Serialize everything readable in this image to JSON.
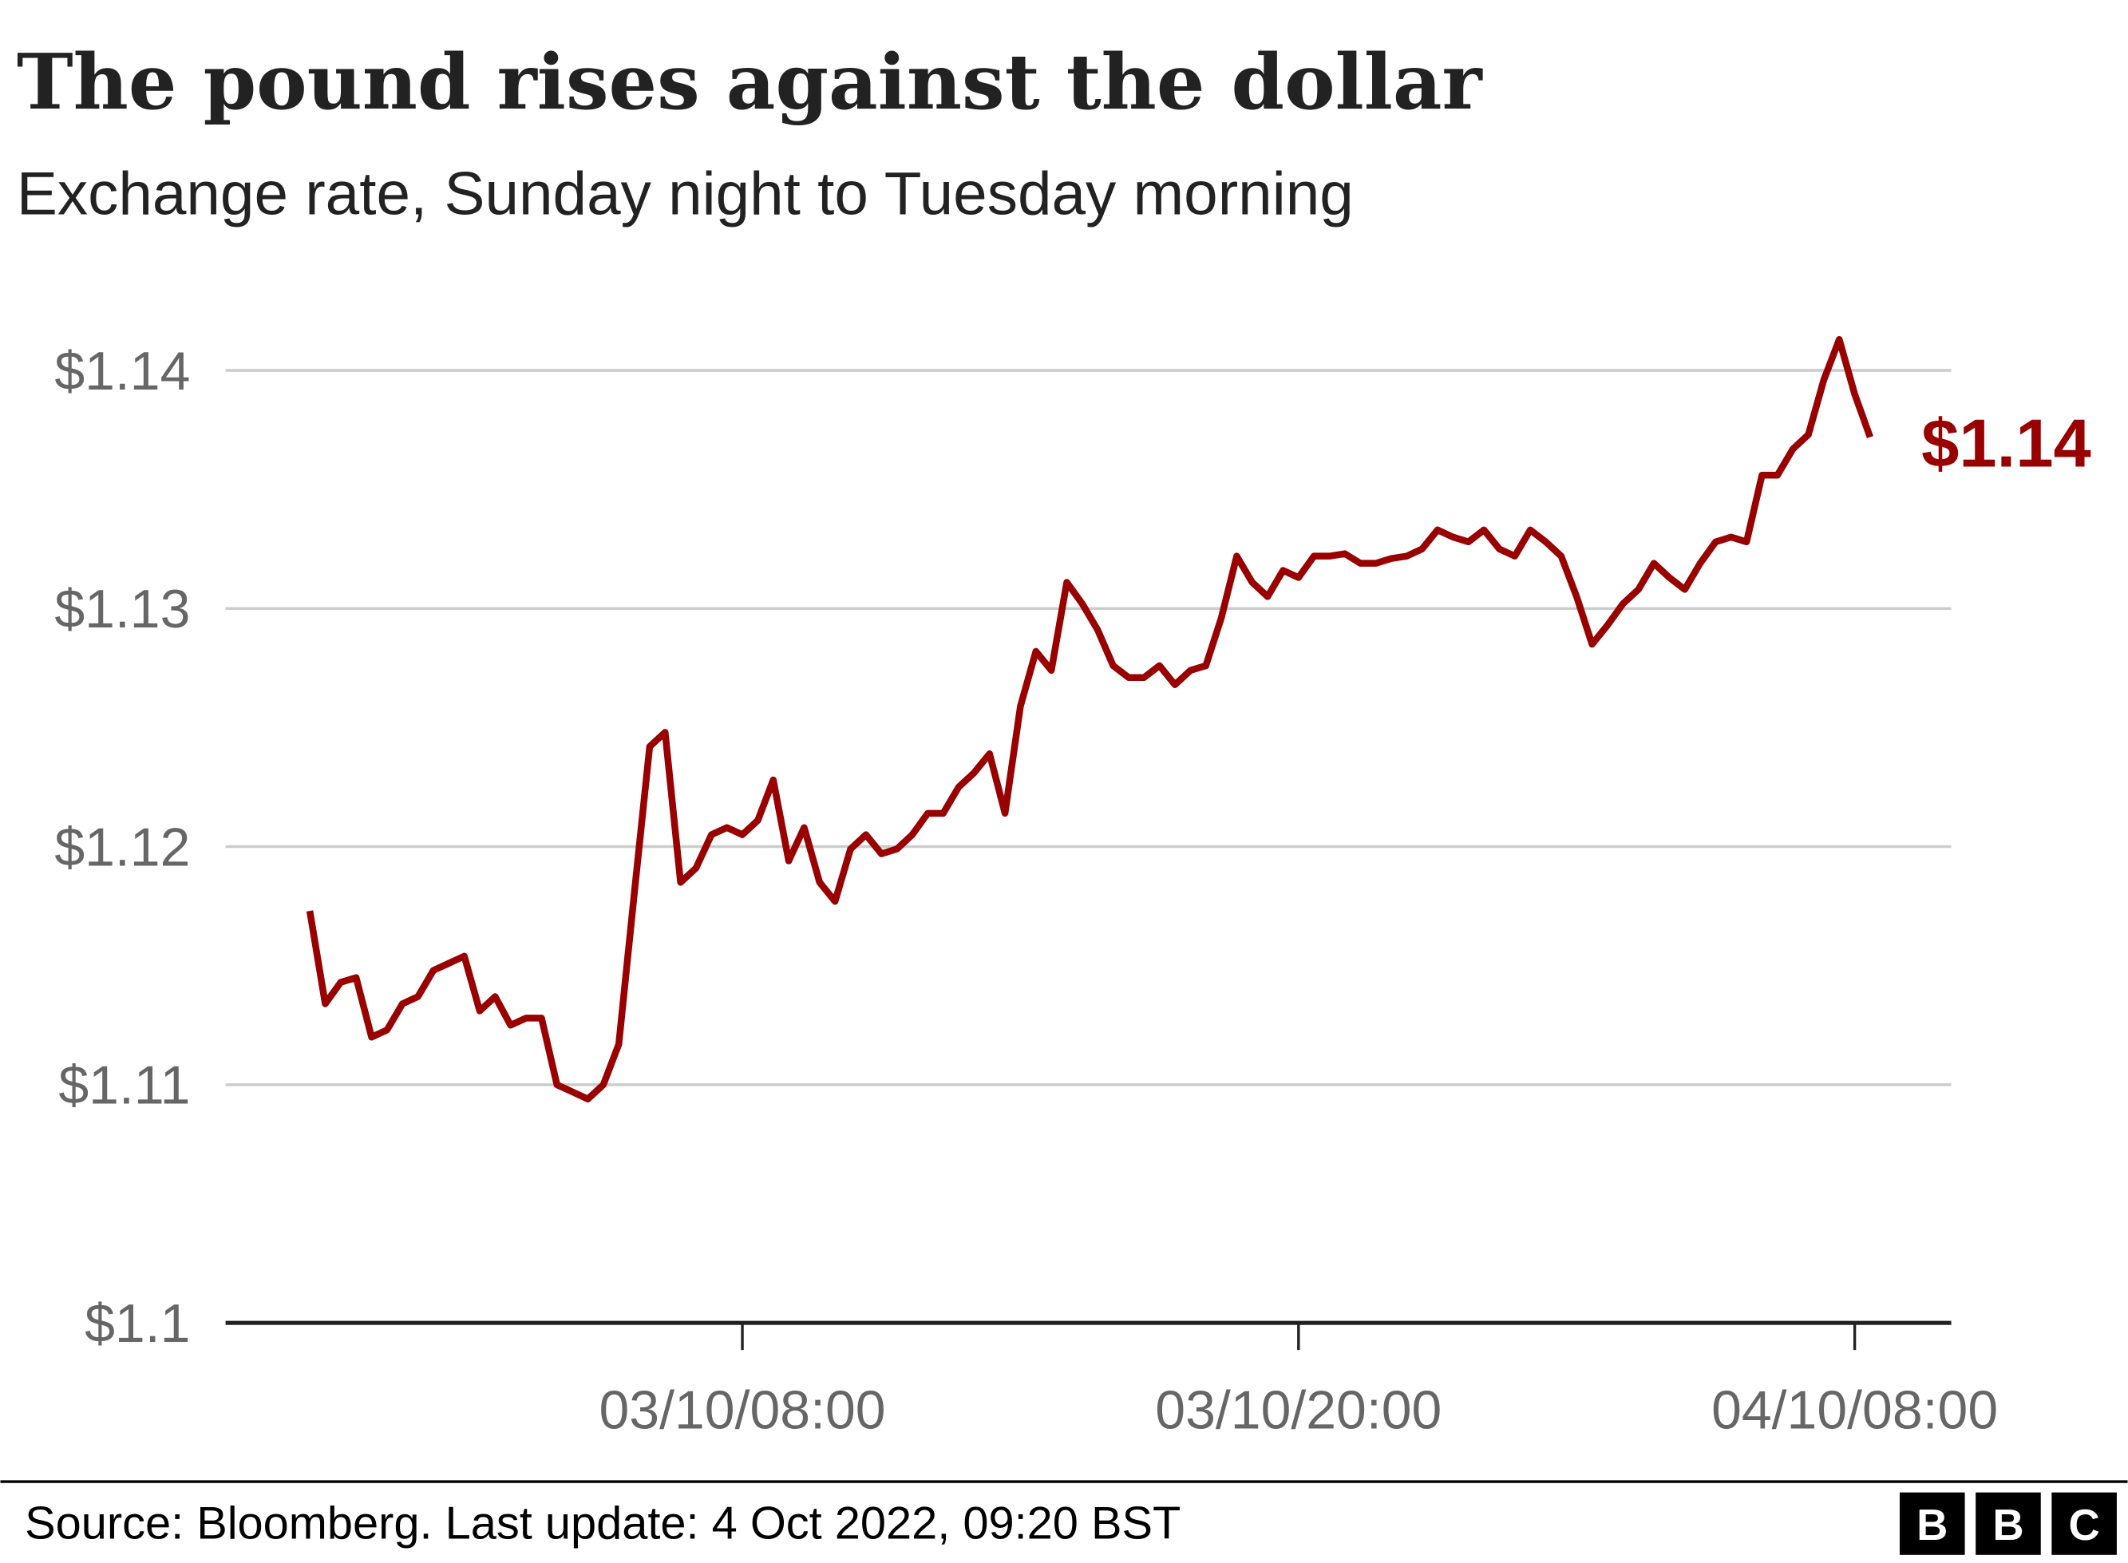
{
  "chart_data": {
    "type": "line",
    "title": "The pound rises against the dollar",
    "subtitle": "Exchange rate, Sunday night to Tuesday morning",
    "source": "Source: Bloomberg. Last update: 4 Oct 2022, 09:20 BST",
    "logo": [
      "B",
      "B",
      "C"
    ],
    "end_label": "$1.14",
    "x": [
      "02/10/22:40",
      "02/10/23:00",
      "02/10/23:20",
      "02/10/23:40",
      "03/10/00:00",
      "03/10/00:20",
      "03/10/00:40",
      "03/10/01:00",
      "03/10/01:20",
      "03/10/01:40",
      "03/10/02:00",
      "03/10/02:20",
      "03/10/02:40",
      "03/10/03:00",
      "03/10/03:20",
      "03/10/03:40",
      "03/10/04:00",
      "03/10/04:20",
      "03/10/04:40",
      "03/10/05:00",
      "03/10/05:20",
      "03/10/05:40",
      "03/10/06:00",
      "03/10/06:20",
      "03/10/06:40",
      "03/10/07:00",
      "03/10/07:20",
      "03/10/07:40",
      "03/10/08:00",
      "03/10/08:20",
      "03/10/08:40",
      "03/10/09:00",
      "03/10/09:20",
      "03/10/09:40",
      "03/10/10:00",
      "03/10/10:20",
      "03/10/10:40",
      "03/10/11:00",
      "03/10/11:20",
      "03/10/11:40",
      "03/10/12:00",
      "03/10/12:20",
      "03/10/12:40",
      "03/10/13:00",
      "03/10/13:20",
      "03/10/13:40",
      "03/10/14:00",
      "03/10/14:20",
      "03/10/14:40",
      "03/10/15:00",
      "03/10/15:20",
      "03/10/15:40",
      "03/10/16:00",
      "03/10/16:20",
      "03/10/16:40",
      "03/10/17:00",
      "03/10/17:20",
      "03/10/17:40",
      "03/10/18:00",
      "03/10/18:20",
      "03/10/18:40",
      "03/10/19:00",
      "03/10/19:20",
      "03/10/19:40",
      "03/10/20:00",
      "03/10/20:20",
      "03/10/20:40",
      "03/10/21:00",
      "03/10/21:20",
      "03/10/21:40",
      "03/10/22:00",
      "03/10/22:20",
      "03/10/22:40",
      "03/10/23:00",
      "03/10/23:20",
      "03/10/23:40",
      "04/10/00:00",
      "04/10/00:20",
      "04/10/00:40",
      "04/10/01:00",
      "04/10/01:20",
      "04/10/01:40",
      "04/10/02:00",
      "04/10/02:20",
      "04/10/02:40",
      "04/10/03:00",
      "04/10/03:20",
      "04/10/03:40",
      "04/10/04:00",
      "04/10/04:20",
      "04/10/04:40",
      "04/10/05:00",
      "04/10/05:20",
      "04/10/05:40",
      "04/10/06:00",
      "04/10/06:20",
      "04/10/06:40",
      "04/10/07:00",
      "04/10/07:20",
      "04/10/07:40",
      "04/10/08:00",
      "04/10/08:20"
    ],
    "series": [
      {
        "color": "#990000",
        "values": [
          1.1173,
          1.1134,
          1.1143,
          1.1145,
          1.112,
          1.1123,
          1.1134,
          1.1137,
          1.1148,
          1.1151,
          1.1154,
          1.1131,
          1.1137,
          1.1125,
          1.1128,
          1.1128,
          1.11,
          1.1097,
          1.1094,
          1.11,
          1.1117,
          1.118,
          1.1242,
          1.1248,
          1.1185,
          1.1191,
          1.1205,
          1.1208,
          1.1205,
          1.1211,
          1.1228,
          1.1194,
          1.1208,
          1.1185,
          1.1177,
          1.1199,
          1.1205,
          1.1197,
          1.1199,
          1.1205,
          1.1214,
          1.1214,
          1.1225,
          1.1231,
          1.1239,
          1.1214,
          1.1259,
          1.1282,
          1.1274,
          1.1311,
          1.1302,
          1.1291,
          1.1276,
          1.1271,
          1.1271,
          1.1276,
          1.1268,
          1.1274,
          1.1276,
          1.1296,
          1.1322,
          1.1311,
          1.1305,
          1.1316,
          1.1313,
          1.1322,
          1.1322,
          1.1323,
          1.1319,
          1.1319,
          1.1321,
          1.1322,
          1.1325,
          1.1333,
          1.133,
          1.1328,
          1.1333,
          1.1325,
          1.1322,
          1.1333,
          1.1328,
          1.1322,
          1.1305,
          1.1285,
          1.1293,
          1.1302,
          1.1308,
          1.1319,
          1.1313,
          1.1308,
          1.1319,
          1.1328,
          1.133,
          1.1328,
          1.1356,
          1.1356,
          1.1367,
          1.1373,
          1.1396,
          1.1413,
          1.139,
          1.1372
        ]
      }
    ],
    "xlim": [
      "02/10/20:51",
      "04/10/10:05"
    ],
    "xticks": [
      "03/10/08:00",
      "03/10/20:00",
      "04/10/08:00"
    ],
    "ylim": [
      1.1,
      1.14
    ],
    "yticks": [
      {
        "value": 1.1,
        "label": "$1.1"
      },
      {
        "value": 1.11,
        "label": "$1.11"
      },
      {
        "value": 1.12,
        "label": "$1.12"
      },
      {
        "value": 1.13,
        "label": "$1.13"
      },
      {
        "value": 1.14,
        "label": "$1.14"
      }
    ],
    "grid": true
  }
}
